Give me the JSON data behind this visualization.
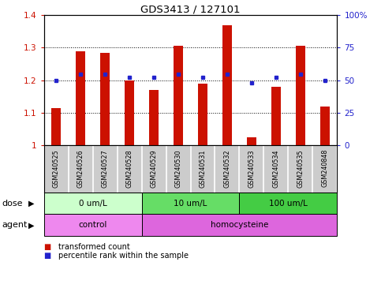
{
  "title": "GDS3413 / 127101",
  "samples": [
    "GSM240525",
    "GSM240526",
    "GSM240527",
    "GSM240528",
    "GSM240529",
    "GSM240530",
    "GSM240531",
    "GSM240532",
    "GSM240533",
    "GSM240534",
    "GSM240535",
    "GSM240848"
  ],
  "transformed_count": [
    1.115,
    1.29,
    1.285,
    1.2,
    1.17,
    1.305,
    1.19,
    1.37,
    1.025,
    1.18,
    1.305,
    1.12
  ],
  "percentile_rank": [
    50,
    55,
    55,
    52,
    52,
    55,
    52,
    55,
    48,
    52,
    55,
    50
  ],
  "ylim_left": [
    1.0,
    1.4
  ],
  "ylim_right": [
    0,
    100
  ],
  "yticks_left": [
    1.0,
    1.1,
    1.2,
    1.3,
    1.4
  ],
  "yticks_right": [
    0,
    25,
    50,
    75,
    100
  ],
  "ytick_labels_left": [
    "1",
    "1.1",
    "1.2",
    "1.3",
    "1.4"
  ],
  "ytick_labels_right": [
    "0",
    "25",
    "50",
    "75",
    "100%"
  ],
  "bar_color": "#cc1100",
  "dot_color": "#2222cc",
  "dose_groups": [
    {
      "label": "0 um/L",
      "start": 0,
      "end": 4,
      "color": "#ccffcc"
    },
    {
      "label": "10 um/L",
      "start": 4,
      "end": 8,
      "color": "#66dd66"
    },
    {
      "label": "100 um/L",
      "start": 8,
      "end": 12,
      "color": "#44cc44"
    }
  ],
  "agent_groups": [
    {
      "label": "control",
      "start": 0,
      "end": 4,
      "color": "#ee88ee"
    },
    {
      "label": "homocysteine",
      "start": 4,
      "end": 12,
      "color": "#dd66dd"
    }
  ],
  "dose_label": "dose",
  "agent_label": "agent",
  "legend_red_label": "transformed count",
  "legend_blue_label": "percentile rank within the sample",
  "bg_color": "#ffffff",
  "sample_bg_color": "#cccccc",
  "bar_width": 0.4
}
